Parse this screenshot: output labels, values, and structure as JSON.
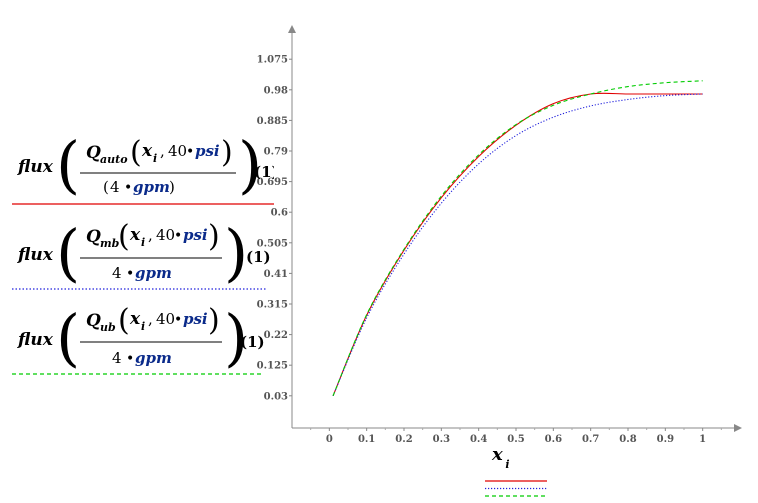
{
  "expressions": [
    {
      "fn": "flux",
      "q": "Q",
      "sub": "auto",
      "var": "x",
      "var_sub": "i",
      "arg": "40",
      "unit": "psi",
      "den_num": "4",
      "den_unit": "gpm",
      "den_paren": true,
      "idx": "(1)",
      "color": "#e00000",
      "style": "solid"
    },
    {
      "fn": "flux",
      "q": "Q",
      "sub": "mb",
      "var": "x",
      "var_sub": "i",
      "arg": "40",
      "unit": "psi",
      "den_num": "4",
      "den_unit": "gpm",
      "den_paren": false,
      "idx": "(1)",
      "color": "#2222dd",
      "style": "dotted"
    },
    {
      "fn": "flux",
      "q": "Q",
      "sub": "ub",
      "var": "x",
      "var_sub": "i",
      "arg": "40",
      "unit": "psi",
      "den_num": "4",
      "den_unit": "gpm",
      "den_paren": false,
      "idx": "(1)",
      "color": "#00cc00",
      "style": "dashed"
    }
  ],
  "chart_data": {
    "type": "line",
    "xlabel": "x",
    "xlabel_sub": "i",
    "xlim": [
      -0.1,
      1.1
    ],
    "ylim": [
      -0.07,
      1.175
    ],
    "x_ticks": [
      "0",
      "0.1",
      "0.2",
      "0.3",
      "0.4",
      "0.5",
      "0.6",
      "0.7",
      "0.8",
      "0.9",
      "1"
    ],
    "y_ticks": [
      "0.03",
      "0.125",
      "0.22",
      "0.315",
      "0.41",
      "0.505",
      "0.6",
      "0.695",
      "0.79",
      "0.885",
      "0.98",
      "1.075"
    ],
    "grid": false,
    "series": [
      {
        "color": "#e00000",
        "dash": "solid",
        "x": [
          0.01,
          0.1,
          0.2,
          0.3,
          0.4,
          0.5,
          0.6,
          0.7,
          0.8,
          0.9,
          1.0
        ],
        "y": [
          0.03,
          0.28,
          0.482,
          0.645,
          0.773,
          0.87,
          0.937,
          0.967,
          0.967,
          0.967,
          0.967
        ]
      },
      {
        "color": "#2222dd",
        "dash": "dotted",
        "x": [
          0.01,
          0.1,
          0.2,
          0.3,
          0.4,
          0.5,
          0.6,
          0.7,
          0.8,
          0.9,
          1.0
        ],
        "y": [
          0.03,
          0.272,
          0.47,
          0.628,
          0.75,
          0.838,
          0.895,
          0.93,
          0.95,
          0.962,
          0.967
        ]
      },
      {
        "color": "#00cc00",
        "dash": "dashed",
        "x": [
          0.01,
          0.1,
          0.2,
          0.3,
          0.4,
          0.5,
          0.6,
          0.7,
          0.8,
          0.9,
          1.0
        ],
        "y": [
          0.03,
          0.282,
          0.485,
          0.65,
          0.778,
          0.872,
          0.932,
          0.967,
          0.99,
          1.002,
          1.008
        ]
      }
    ]
  }
}
